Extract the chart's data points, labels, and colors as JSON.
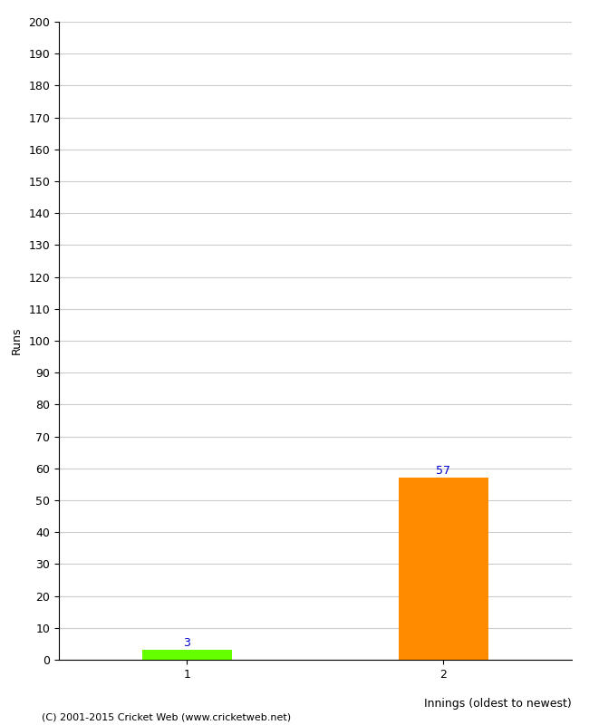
{
  "categories": [
    1,
    2
  ],
  "values": [
    3,
    57
  ],
  "bar_colors": [
    "#66ff00",
    "#ff8c00"
  ],
  "xlabel": "Innings (oldest to newest)",
  "ylabel": "Runs",
  "ylim": [
    0,
    200
  ],
  "yticks": [
    0,
    10,
    20,
    30,
    40,
    50,
    60,
    70,
    80,
    90,
    100,
    110,
    120,
    130,
    140,
    150,
    160,
    170,
    180,
    190,
    200
  ],
  "xticks": [
    1,
    2
  ],
  "footer": "(C) 2001-2015 Cricket Web (www.cricketweb.net)",
  "bar_width": 0.35,
  "value_label_color": "#0000cc",
  "background_color": "#ffffff",
  "grid_color": "#cccccc"
}
